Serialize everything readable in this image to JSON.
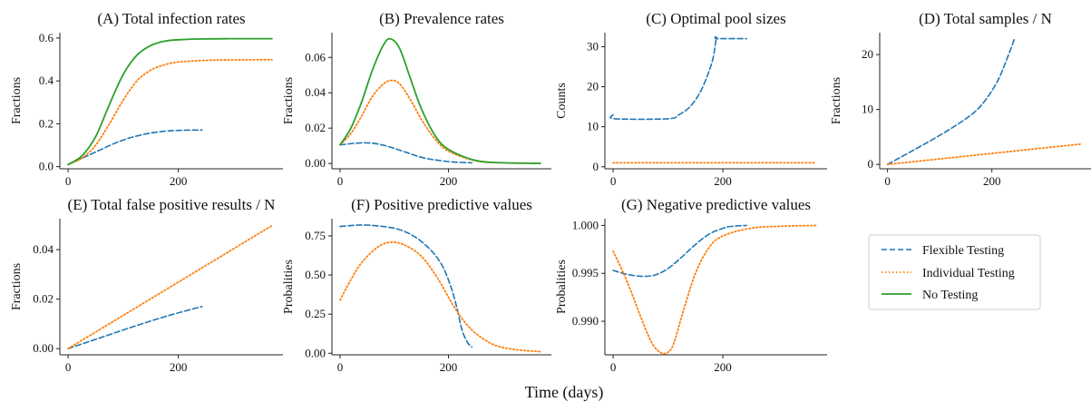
{
  "figure": {
    "xlabel": "Time (days)"
  },
  "legend": {
    "placement": "lower-right of figure grid",
    "entries": [
      {
        "label": "Flexible Testing",
        "color": "#1f77b4",
        "style": "dashed"
      },
      {
        "label": "Individual Testing",
        "color": "#ff7f0e",
        "style": "dotted"
      },
      {
        "label": "No Testing",
        "color": "#2ca02c",
        "style": "solid"
      }
    ]
  },
  "chart_data": [
    {
      "type": "line",
      "title": "(A) Total infection rates",
      "ylabel": "Fractions",
      "xlim": [
        -15,
        390
      ],
      "ylim": [
        -0.01,
        0.625
      ],
      "xticks": [
        0,
        200
      ],
      "yticks": [
        0.0,
        0.2,
        0.4,
        0.6
      ],
      "ytick_labels": [
        "0.0",
        "0.2",
        "0.4",
        "0.6"
      ],
      "series": [
        {
          "name": "Flexible Testing",
          "x": [
            0,
            30,
            60,
            90,
            120,
            150,
            180,
            210,
            243
          ],
          "y": [
            0.01,
            0.045,
            0.08,
            0.115,
            0.14,
            0.157,
            0.166,
            0.17,
            0.171
          ]
        },
        {
          "name": "Individual Testing",
          "x": [
            0,
            25,
            50,
            75,
            100,
            125,
            150,
            175,
            200,
            250,
            300,
            370
          ],
          "y": [
            0.01,
            0.04,
            0.1,
            0.2,
            0.31,
            0.4,
            0.45,
            0.475,
            0.488,
            0.496,
            0.498,
            0.499
          ]
        },
        {
          "name": "No Testing",
          "x": [
            0,
            25,
            50,
            75,
            100,
            125,
            150,
            175,
            200,
            250,
            300,
            370
          ],
          "y": [
            0.01,
            0.05,
            0.14,
            0.29,
            0.43,
            0.52,
            0.565,
            0.585,
            0.592,
            0.596,
            0.597,
            0.597
          ]
        }
      ]
    },
    {
      "type": "line",
      "title": "(B) Prevalence rates",
      "ylabel": "Fractions",
      "xlim": [
        -15,
        390
      ],
      "ylim": [
        -0.003,
        0.074
      ],
      "xticks": [
        0,
        200
      ],
      "yticks": [
        0.0,
        0.02,
        0.04,
        0.06
      ],
      "ytick_labels": [
        "0.00",
        "0.02",
        "0.04",
        "0.06"
      ],
      "series": [
        {
          "name": "Flexible Testing",
          "x": [
            0,
            30,
            60,
            90,
            120,
            150,
            180,
            210,
            243
          ],
          "y": [
            0.0105,
            0.0115,
            0.0115,
            0.0095,
            0.0065,
            0.0035,
            0.0018,
            0.0008,
            0.0004
          ]
        },
        {
          "name": "Individual Testing",
          "x": [
            0,
            20,
            40,
            60,
            80,
            95,
            110,
            130,
            150,
            175,
            200,
            250,
            300,
            370
          ],
          "y": [
            0.0105,
            0.017,
            0.027,
            0.038,
            0.045,
            0.047,
            0.045,
            0.036,
            0.025,
            0.014,
            0.007,
            0.0015,
            0.0004,
            0.0001
          ]
        },
        {
          "name": "No Testing",
          "x": [
            0,
            20,
            40,
            60,
            80,
            93,
            110,
            130,
            150,
            175,
            200,
            250,
            300,
            370
          ],
          "y": [
            0.0105,
            0.02,
            0.035,
            0.053,
            0.067,
            0.0705,
            0.065,
            0.048,
            0.031,
            0.016,
            0.008,
            0.0017,
            0.0004,
            0.0001
          ]
        }
      ]
    },
    {
      "type": "line",
      "title": "(C) Optimal pool sizes",
      "ylabel": "Counts",
      "xlim": [
        -15,
        390
      ],
      "ylim": [
        -0.5,
        33.5
      ],
      "xticks": [
        0,
        200
      ],
      "yticks": [
        0,
        10,
        20,
        30
      ],
      "ytick_labels": [
        "0",
        "10",
        "20",
        "30"
      ],
      "series": [
        {
          "name": "Flexible Testing",
          "x": [
            0,
            3,
            100,
            120,
            140,
            160,
            180,
            188,
            190,
            243
          ],
          "y": [
            13,
            12,
            12,
            13,
            15,
            19,
            26,
            32,
            32,
            32
          ]
        },
        {
          "name": "Individual Testing",
          "x": [
            0,
            370
          ],
          "y": [
            1,
            1
          ]
        }
      ]
    },
    {
      "type": "line",
      "title": "(D) Total samples / N",
      "ylabel": "Fractions",
      "xlim": [
        -15,
        390
      ],
      "ylim": [
        -0.8,
        24
      ],
      "xticks": [
        0,
        200
      ],
      "yticks": [
        0,
        10,
        20
      ],
      "ytick_labels": [
        "0",
        "10",
        "20"
      ],
      "series": [
        {
          "name": "Flexible Testing",
          "x": [
            0,
            50,
            100,
            150,
            180,
            210,
            230,
            243
          ],
          "y": [
            0,
            2.6,
            5.3,
            8.3,
            10.8,
            15.0,
            19.5,
            22.8
          ]
        },
        {
          "name": "Individual Testing",
          "x": [
            0,
            100,
            200,
            300,
            370
          ],
          "y": [
            0,
            1.0,
            2.0,
            3.0,
            3.7
          ]
        }
      ]
    },
    {
      "type": "line",
      "title": "(E) Total false positive results / N",
      "ylabel": "Fractions",
      "xlim": [
        -15,
        390
      ],
      "ylim": [
        -0.0025,
        0.0525
      ],
      "xticks": [
        0,
        200
      ],
      "yticks": [
        0.0,
        0.02,
        0.04
      ],
      "ytick_labels": [
        "0.00",
        "0.02",
        "0.04"
      ],
      "series": [
        {
          "name": "Flexible Testing",
          "x": [
            0,
            60,
            120,
            180,
            243
          ],
          "y": [
            0,
            0.0045,
            0.009,
            0.0132,
            0.017
          ]
        },
        {
          "name": "Individual Testing",
          "x": [
            0,
            370
          ],
          "y": [
            0,
            0.0497
          ]
        }
      ]
    },
    {
      "type": "line",
      "title": "(F) Positive predictive values",
      "ylabel": "Probalities",
      "xlim": [
        -15,
        390
      ],
      "ylim": [
        -0.01,
        0.86
      ],
      "xticks": [
        0,
        200
      ],
      "yticks": [
        0.0,
        0.25,
        0.5,
        0.75
      ],
      "ytick_labels": [
        "0.00",
        "0.25",
        "0.50",
        "0.75"
      ],
      "series": [
        {
          "name": "Flexible Testing",
          "x": [
            0,
            40,
            80,
            110,
            140,
            170,
            190,
            205,
            215,
            225,
            235,
            243
          ],
          "y": [
            0.81,
            0.82,
            0.81,
            0.79,
            0.74,
            0.65,
            0.55,
            0.42,
            0.3,
            0.15,
            0.07,
            0.04
          ]
        },
        {
          "name": "Individual Testing",
          "x": [
            0,
            20,
            40,
            70,
            95,
            120,
            150,
            180,
            210,
            240,
            280,
            320,
            370
          ],
          "y": [
            0.34,
            0.47,
            0.58,
            0.68,
            0.71,
            0.69,
            0.62,
            0.48,
            0.3,
            0.16,
            0.06,
            0.025,
            0.01
          ]
        }
      ]
    },
    {
      "type": "line",
      "title": "(G) Negative predictive values",
      "ylabel": "Probalities",
      "xlim": [
        -15,
        390
      ],
      "ylim": [
        0.9865,
        1.0007
      ],
      "xticks": [
        0,
        200
      ],
      "yticks": [
        0.99,
        0.995,
        1.0
      ],
      "ytick_labels": [
        "0.990",
        "0.995",
        "1.000"
      ],
      "series": [
        {
          "name": "Flexible Testing",
          "x": [
            0,
            25,
            50,
            75,
            100,
            125,
            150,
            175,
            200,
            215,
            243
          ],
          "y": [
            0.9953,
            0.9949,
            0.9947,
            0.9948,
            0.9955,
            0.9967,
            0.998,
            0.9991,
            0.9997,
            0.9999,
            1.0
          ]
        },
        {
          "name": "Individual Testing",
          "x": [
            0,
            15,
            30,
            50,
            70,
            85,
            98,
            110,
            125,
            150,
            175,
            200,
            250,
            300,
            370
          ],
          "y": [
            0.9973,
            0.9955,
            0.9935,
            0.9905,
            0.9878,
            0.9868,
            0.9867,
            0.9876,
            0.9905,
            0.995,
            0.9977,
            0.9989,
            0.9997,
            0.9999,
            1.0
          ]
        }
      ]
    }
  ]
}
